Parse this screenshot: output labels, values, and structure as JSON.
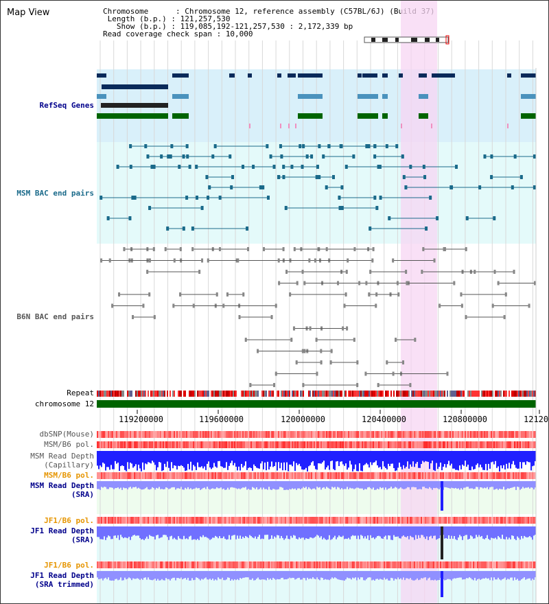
{
  "app": {
    "title": "Map View"
  },
  "header": {
    "chromosome_key": "Chromosome      :",
    "chromosome_value": "Chromosome 12, reference assembly (C57BL/6J) (Build 37)",
    "length_key": " Length (b.p.) :",
    "length_value": "121,257,530",
    "show_key": "   Show (b.p.) :",
    "show_value": "119,085,192-121,257,530 : 2,172,339 bp",
    "span_key": "Read coverage check span :",
    "span_value": "10,000"
  },
  "tracks": {
    "refseq": "RefSeq Genes",
    "msm_bac": "MSM BAC end pairs",
    "b6n_bac": "B6N BAC end pairs",
    "repeat": "Repeat",
    "chromosome": "chromosome 12",
    "dbsnp": "dbSNP(Mouse)",
    "msm_b6_pol_1": "MSM/B6 pol.",
    "msm_read_depth_cap_1": "MSM Read Depth",
    "msm_read_depth_cap_2": "(Capillary)",
    "msm_b6_pol_2": "MSM/B6 pol.",
    "msm_read_depth_sra_1": "MSM Read Depth",
    "msm_read_depth_sra_2": "(SRA)",
    "jf1_b6_pol_1": "JF1/B6 pol.",
    "jf1_read_depth_sra_1": "JF1 Read Depth",
    "jf1_read_depth_sra_2": "(SRA)",
    "jf1_b6_pol_2": "JF1/B6 pol.",
    "jf1_read_depth_trim_1": "JF1 Read Depth",
    "jf1_read_depth_trim_2": "(SRA trimmed)"
  },
  "axis": {
    "ticks": [
      "119200000",
      "119600000",
      "120000000",
      "120400000",
      "120800000",
      "12120"
    ]
  },
  "colors": {
    "refseq_bg": "#d9f0fa",
    "msm_bg": "#e4fafa",
    "b6n_bg": "#f4f4f4",
    "highlight": "#f7d6f3",
    "chrom_bar": "#006400",
    "label_blue": "#00008b",
    "label_orange": "#e69500",
    "msm_bac_color": "#1a6a8a"
  }
}
